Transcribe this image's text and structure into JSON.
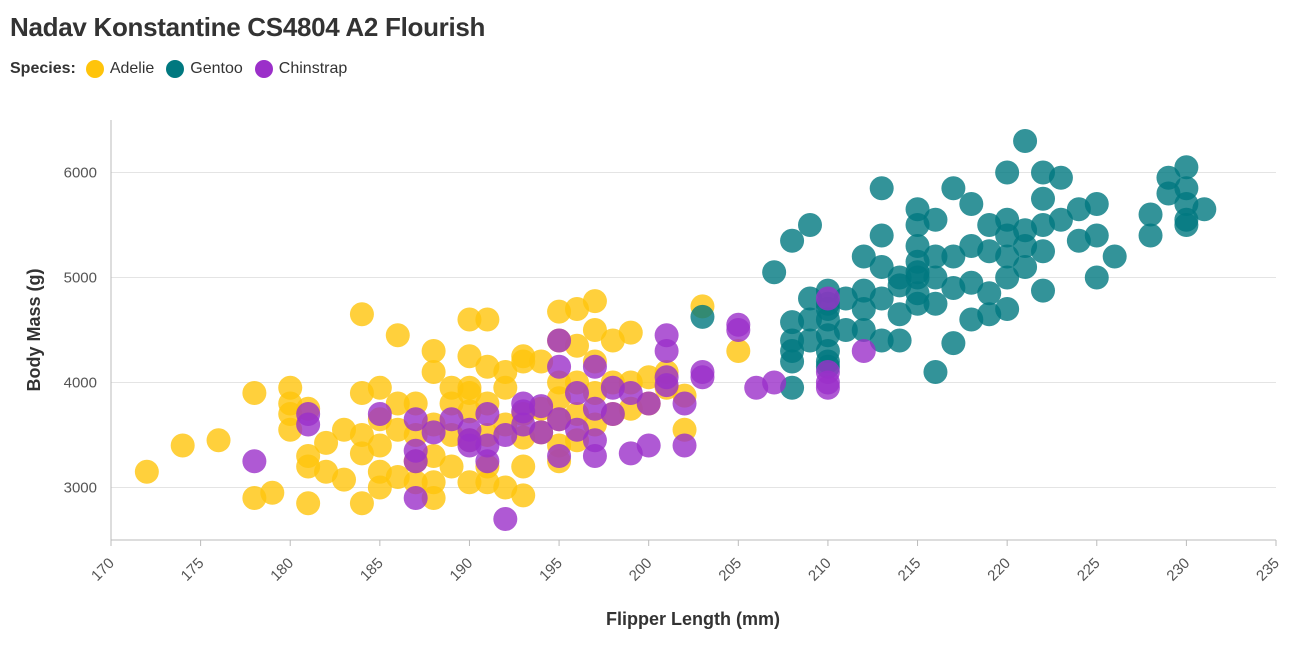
{
  "title": "Nadav Konstantine CS4804 A2 Flourish",
  "legend": {
    "title": "Species:",
    "items": [
      {
        "label": "Adelie",
        "color": "#FFC40B"
      },
      {
        "label": "Gentoo",
        "color": "#00787F"
      },
      {
        "label": "Chinstrap",
        "color": "#9B2FC9"
      }
    ]
  },
  "chart_data": {
    "type": "scatter",
    "xlabel": "Flipper Length (mm)",
    "ylabel": "Body Mass (g)",
    "xlim": [
      170,
      235
    ],
    "ylim": [
      2500,
      6500
    ],
    "x_ticks": [
      170,
      175,
      180,
      185,
      190,
      195,
      200,
      205,
      210,
      215,
      220,
      225,
      230,
      235
    ],
    "y_ticks": [
      3000,
      4000,
      5000,
      6000
    ],
    "grid": "horizontal",
    "legend_position": "top-left",
    "series": [
      {
        "name": "Adelie",
        "color": "#FFC40B",
        "points": [
          [
            172,
            3150
          ],
          [
            174,
            3400
          ],
          [
            176,
            3450
          ],
          [
            178,
            3900
          ],
          [
            178,
            2900
          ],
          [
            179,
            2950
          ],
          [
            180,
            3950
          ],
          [
            180,
            3800
          ],
          [
            180,
            3700
          ],
          [
            180,
            3550
          ],
          [
            181,
            3300
          ],
          [
            181,
            3200
          ],
          [
            181,
            2850
          ],
          [
            181,
            3750
          ],
          [
            182,
            3425
          ],
          [
            182,
            3150
          ],
          [
            183,
            3550
          ],
          [
            183,
            3075
          ],
          [
            184,
            4650
          ],
          [
            184,
            3900
          ],
          [
            184,
            3500
          ],
          [
            184,
            3325
          ],
          [
            184,
            2850
          ],
          [
            185,
            3950
          ],
          [
            185,
            3650
          ],
          [
            185,
            3400
          ],
          [
            185,
            3150
          ],
          [
            185,
            3000
          ],
          [
            186,
            4450
          ],
          [
            186,
            3800
          ],
          [
            186,
            3550
          ],
          [
            186,
            3100
          ],
          [
            187,
            3800
          ],
          [
            187,
            3500
          ],
          [
            187,
            3250
          ],
          [
            187,
            3050
          ],
          [
            188,
            4300
          ],
          [
            188,
            4100
          ],
          [
            188,
            3600
          ],
          [
            188,
            3300
          ],
          [
            188,
            3050
          ],
          [
            188,
            2900
          ],
          [
            189,
            3950
          ],
          [
            189,
            3800
          ],
          [
            189,
            3500
          ],
          [
            189,
            3200
          ],
          [
            190,
            4600
          ],
          [
            190,
            4250
          ],
          [
            190,
            3950
          ],
          [
            190,
            3900
          ],
          [
            190,
            3725
          ],
          [
            190,
            3450
          ],
          [
            190,
            3050
          ],
          [
            191,
            4600
          ],
          [
            191,
            4150
          ],
          [
            191,
            3800
          ],
          [
            191,
            3500
          ],
          [
            191,
            3200
          ],
          [
            191,
            3050
          ],
          [
            192,
            4100
          ],
          [
            192,
            3950
          ],
          [
            192,
            3600
          ],
          [
            192,
            3000
          ],
          [
            193,
            4250
          ],
          [
            193,
            4200
          ],
          [
            193,
            3700
          ],
          [
            193,
            3475
          ],
          [
            193,
            3200
          ],
          [
            193,
            2925
          ],
          [
            194,
            4200
          ],
          [
            194,
            3750
          ],
          [
            194,
            3525
          ],
          [
            195,
            4675
          ],
          [
            195,
            4400
          ],
          [
            195,
            4000
          ],
          [
            195,
            3850
          ],
          [
            195,
            3650
          ],
          [
            195,
            3400
          ],
          [
            195,
            3250
          ],
          [
            196,
            4700
          ],
          [
            196,
            4350
          ],
          [
            196,
            4000
          ],
          [
            196,
            3700
          ],
          [
            196,
            3450
          ],
          [
            197,
            4775
          ],
          [
            197,
            4500
          ],
          [
            197,
            4200
          ],
          [
            197,
            3900
          ],
          [
            197,
            3600
          ],
          [
            198,
            4400
          ],
          [
            198,
            4000
          ],
          [
            198,
            3700
          ],
          [
            199,
            4475
          ],
          [
            199,
            4000
          ],
          [
            199,
            3750
          ],
          [
            200,
            4050
          ],
          [
            200,
            3800
          ],
          [
            201,
            4100
          ],
          [
            201,
            3950
          ],
          [
            202,
            3875
          ],
          [
            202,
            3550
          ],
          [
            203,
            4725
          ],
          [
            205,
            4300
          ]
        ]
      },
      {
        "name": "Gentoo",
        "color": "#00787F",
        "points": [
          [
            203,
            4625
          ],
          [
            207,
            5050
          ],
          [
            208,
            5350
          ],
          [
            208,
            4575
          ],
          [
            208,
            4400
          ],
          [
            208,
            4300
          ],
          [
            208,
            4200
          ],
          [
            208,
            3950
          ],
          [
            209,
            5500
          ],
          [
            209,
            4800
          ],
          [
            209,
            4600
          ],
          [
            209,
            4400
          ],
          [
            210,
            4875
          ],
          [
            210,
            4750
          ],
          [
            210,
            4700
          ],
          [
            210,
            4600
          ],
          [
            210,
            4450
          ],
          [
            210,
            4300
          ],
          [
            210,
            4200
          ],
          [
            210,
            4150
          ],
          [
            211,
            4800
          ],
          [
            211,
            4500
          ],
          [
            212,
            5200
          ],
          [
            212,
            4875
          ],
          [
            212,
            4700
          ],
          [
            212,
            4500
          ],
          [
            213,
            5850
          ],
          [
            213,
            5400
          ],
          [
            213,
            5100
          ],
          [
            213,
            4800
          ],
          [
            213,
            4400
          ],
          [
            214,
            5000
          ],
          [
            214,
            4925
          ],
          [
            214,
            4650
          ],
          [
            214,
            4400
          ],
          [
            215,
            5650
          ],
          [
            215,
            5500
          ],
          [
            215,
            5300
          ],
          [
            215,
            5150
          ],
          [
            215,
            5050
          ],
          [
            215,
            5000
          ],
          [
            215,
            4850
          ],
          [
            215,
            4750
          ],
          [
            216,
            5550
          ],
          [
            216,
            5200
          ],
          [
            216,
            5000
          ],
          [
            216,
            4750
          ],
          [
            216,
            4100
          ],
          [
            217,
            5850
          ],
          [
            217,
            5200
          ],
          [
            217,
            4900
          ],
          [
            217,
            4375
          ],
          [
            218,
            5700
          ],
          [
            218,
            5300
          ],
          [
            218,
            4950
          ],
          [
            218,
            4600
          ],
          [
            219,
            5500
          ],
          [
            219,
            5250
          ],
          [
            219,
            4850
          ],
          [
            219,
            4650
          ],
          [
            220,
            6000
          ],
          [
            220,
            5550
          ],
          [
            220,
            5400
          ],
          [
            220,
            5200
          ],
          [
            220,
            5000
          ],
          [
            220,
            4700
          ],
          [
            221,
            6300
          ],
          [
            221,
            5450
          ],
          [
            221,
            5300
          ],
          [
            221,
            5100
          ],
          [
            222,
            6000
          ],
          [
            222,
            5750
          ],
          [
            222,
            5500
          ],
          [
            222,
            5250
          ],
          [
            222,
            4875
          ],
          [
            223,
            5950
          ],
          [
            223,
            5550
          ],
          [
            224,
            5650
          ],
          [
            224,
            5350
          ],
          [
            225,
            5700
          ],
          [
            225,
            5400
          ],
          [
            225,
            5000
          ],
          [
            226,
            5200
          ],
          [
            228,
            5600
          ],
          [
            228,
            5400
          ],
          [
            229,
            5950
          ],
          [
            229,
            5800
          ],
          [
            230,
            6050
          ],
          [
            230,
            5850
          ],
          [
            230,
            5700
          ],
          [
            230,
            5550
          ],
          [
            230,
            5500
          ],
          [
            231,
            5650
          ]
        ]
      },
      {
        "name": "Chinstrap",
        "color": "#9B2FC9",
        "points": [
          [
            178,
            3250
          ],
          [
            181,
            3700
          ],
          [
            181,
            3600
          ],
          [
            185,
            3700
          ],
          [
            187,
            3650
          ],
          [
            187,
            3350
          ],
          [
            187,
            3250
          ],
          [
            187,
            2900
          ],
          [
            188,
            3525
          ],
          [
            189,
            3650
          ],
          [
            190,
            3550
          ],
          [
            190,
            3450
          ],
          [
            190,
            3400
          ],
          [
            191,
            3700
          ],
          [
            191,
            3400
          ],
          [
            191,
            3250
          ],
          [
            192,
            3500
          ],
          [
            192,
            2700
          ],
          [
            193,
            3800
          ],
          [
            193,
            3725
          ],
          [
            193,
            3600
          ],
          [
            194,
            3775
          ],
          [
            194,
            3525
          ],
          [
            195,
            4400
          ],
          [
            195,
            4150
          ],
          [
            195,
            3650
          ],
          [
            195,
            3300
          ],
          [
            196,
            3900
          ],
          [
            196,
            3550
          ],
          [
            197,
            4150
          ],
          [
            197,
            3750
          ],
          [
            197,
            3450
          ],
          [
            197,
            3300
          ],
          [
            198,
            3950
          ],
          [
            198,
            3700
          ],
          [
            199,
            3900
          ],
          [
            199,
            3325
          ],
          [
            200,
            3800
          ],
          [
            200,
            3400
          ],
          [
            201,
            4450
          ],
          [
            201,
            4300
          ],
          [
            201,
            4050
          ],
          [
            201,
            3975
          ],
          [
            202,
            3800
          ],
          [
            202,
            3400
          ],
          [
            203,
            4100
          ],
          [
            203,
            4050
          ],
          [
            205,
            4550
          ],
          [
            205,
            4500
          ],
          [
            206,
            3950
          ],
          [
            207,
            4000
          ],
          [
            210,
            4800
          ],
          [
            210,
            4100
          ],
          [
            210,
            4000
          ],
          [
            210,
            3950
          ],
          [
            212,
            4300
          ]
        ]
      }
    ]
  }
}
